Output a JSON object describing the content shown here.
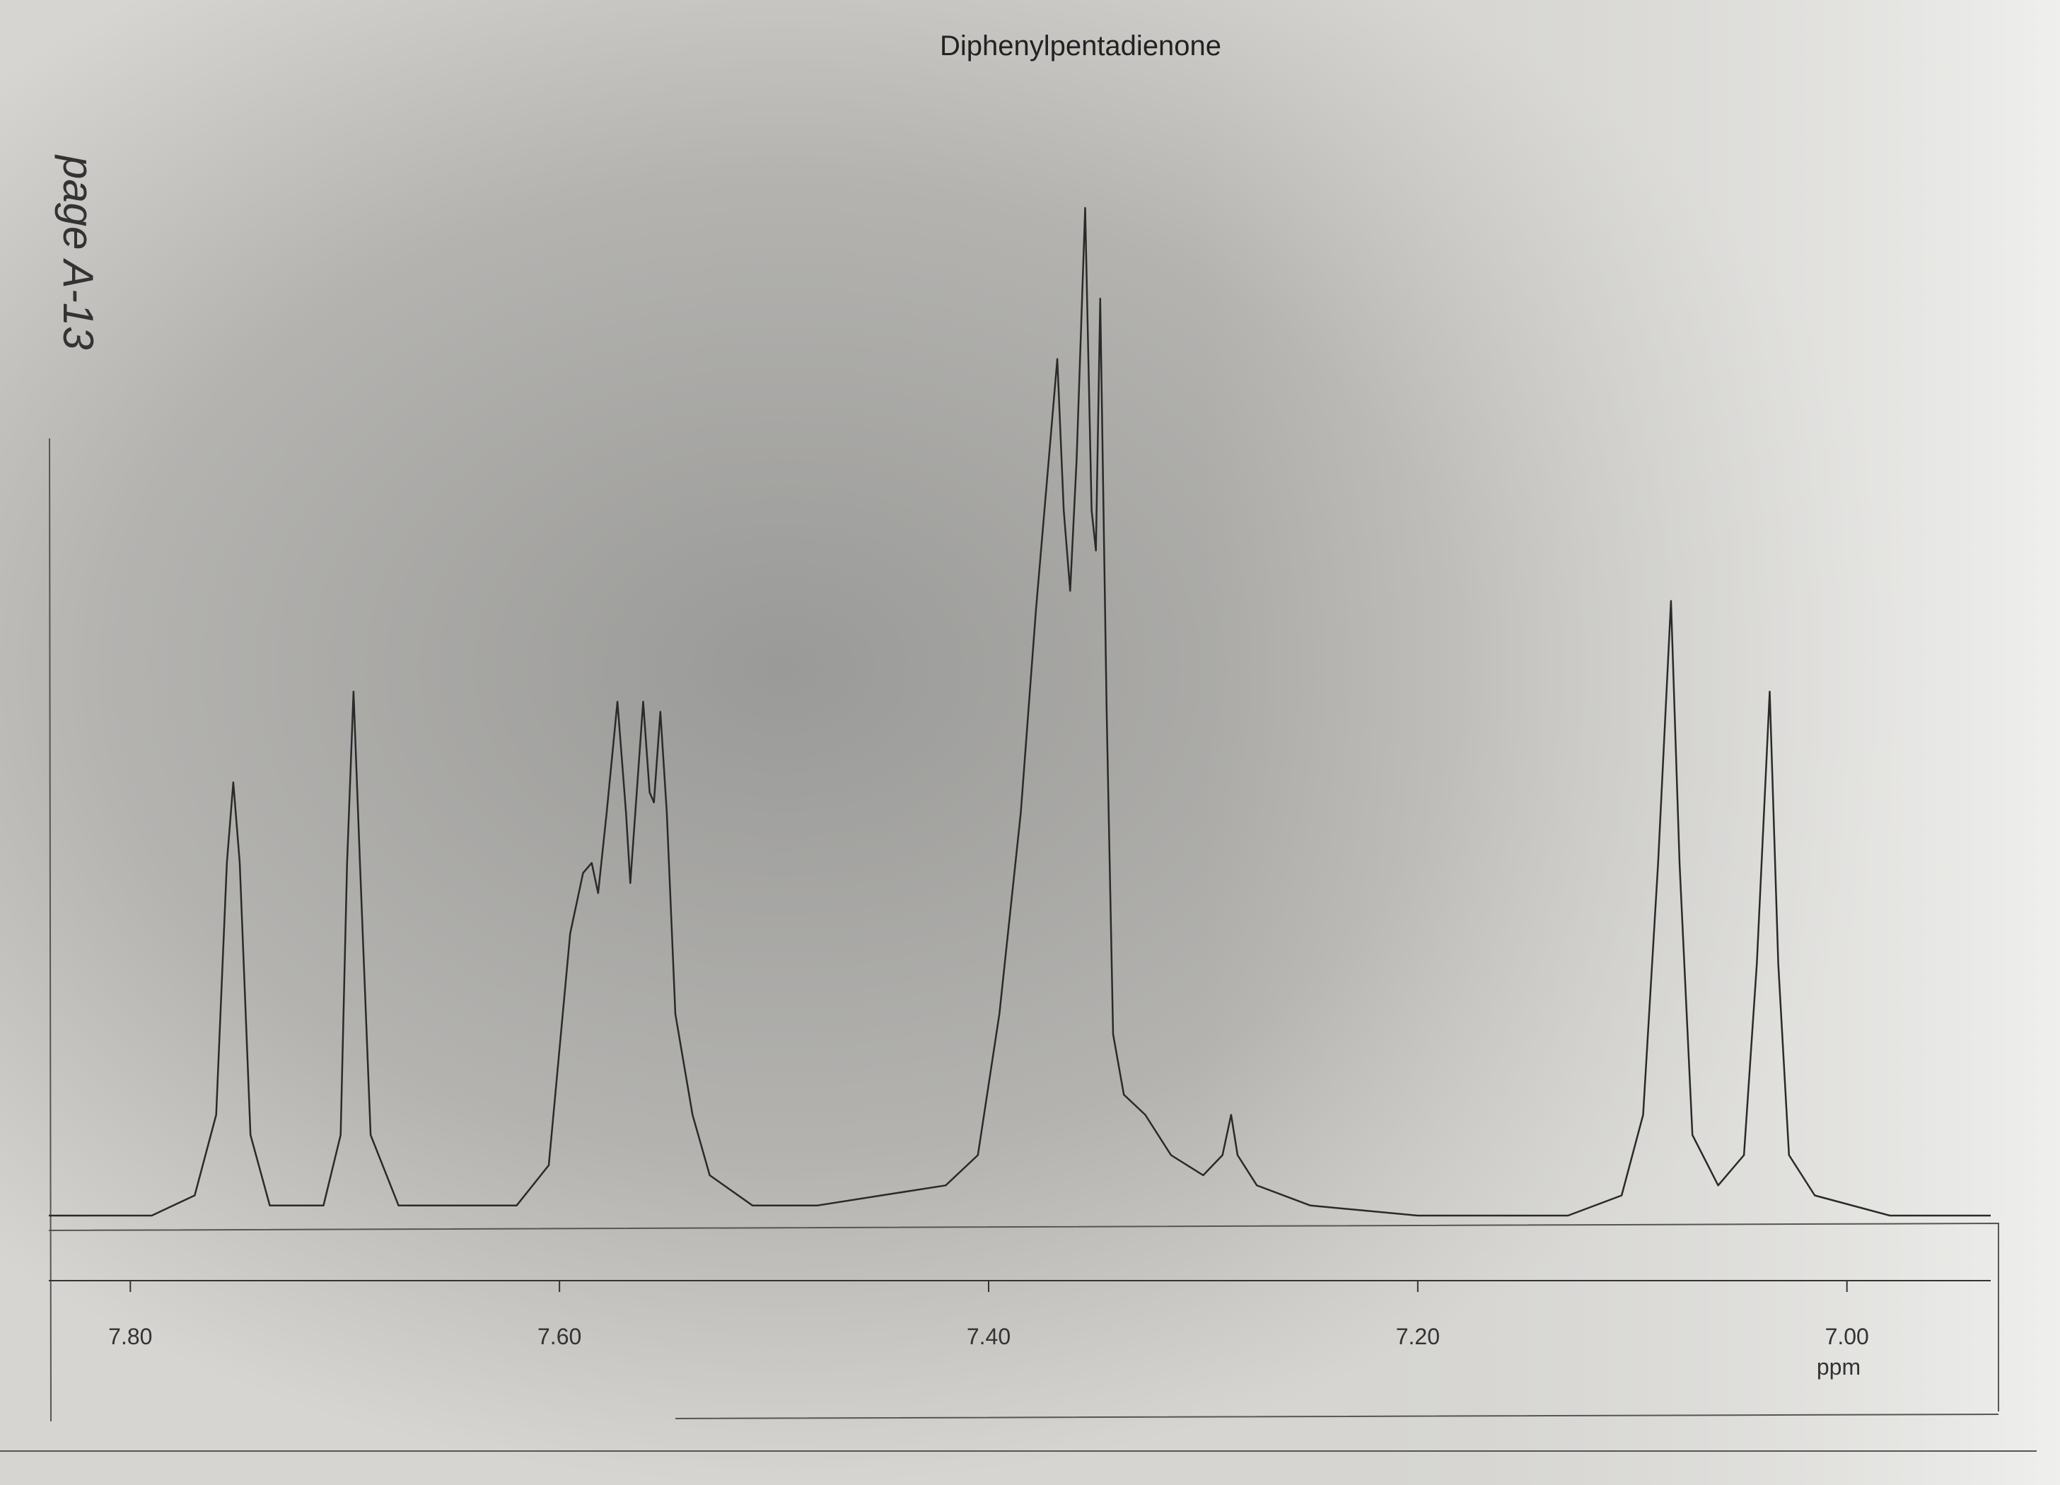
{
  "chart_data": {
    "type": "line",
    "title": "Diphenylpentadienone",
    "annotation": "page A-13",
    "x_label": "ppm",
    "x": [
      7.838,
      7.79,
      7.77,
      7.76,
      7.755,
      7.752,
      7.749,
      7.744,
      7.735,
      7.71,
      7.702,
      7.699,
      7.696,
      7.693,
      7.688,
      7.675,
      7.62,
      7.605,
      7.595,
      7.589,
      7.585,
      7.582,
      7.578,
      7.573,
      7.569,
      7.567,
      7.564,
      7.561,
      7.558,
      7.556,
      7.553,
      7.55,
      7.546,
      7.538,
      7.53,
      7.51,
      7.48,
      7.45,
      7.42,
      7.405,
      7.395,
      7.385,
      7.378,
      7.372,
      7.368,
      7.365,
      7.362,
      7.359,
      7.355,
      7.352,
      7.35,
      7.348,
      7.345,
      7.342,
      7.337,
      7.327,
      7.315,
      7.3,
      7.291,
      7.287,
      7.284,
      7.275,
      7.25,
      7.2,
      7.13,
      7.105,
      7.095,
      7.088,
      7.082,
      7.078,
      7.072,
      7.06,
      7.048,
      7.042,
      7.036,
      7.032,
      7.027,
      7.015,
      6.98,
      6.933
    ],
    "values": [
      0,
      0,
      2,
      10,
      35,
      43,
      35,
      8,
      1,
      1,
      8,
      35,
      52,
      35,
      8,
      1,
      1,
      5,
      28,
      34,
      35,
      32,
      40,
      51,
      40,
      33,
      42,
      51,
      42,
      41,
      50,
      40,
      20,
      10,
      4,
      1,
      1,
      2,
      3,
      6,
      20,
      40,
      60,
      75,
      85,
      70,
      62,
      75,
      100,
      70,
      66,
      91,
      50,
      18,
      12,
      10,
      6,
      4,
      6,
      10,
      6,
      3,
      1,
      0,
      0,
      2,
      10,
      35,
      61,
      35,
      8,
      3,
      6,
      25,
      52,
      25,
      6,
      2,
      0,
      0
    ],
    "color": "#2a2a2a",
    "xlim": [
      7.838,
      6.933
    ],
    "ylim": [
      0,
      100
    ],
    "xticks": [
      {
        "value": 7.8,
        "label": "7.80"
      },
      {
        "value": 7.6,
        "label": "7.60"
      },
      {
        "value": 7.4,
        "label": "7.40"
      },
      {
        "value": 7.2,
        "label": "7.20"
      },
      {
        "value": 7.0,
        "label": "7.00"
      }
    ]
  }
}
